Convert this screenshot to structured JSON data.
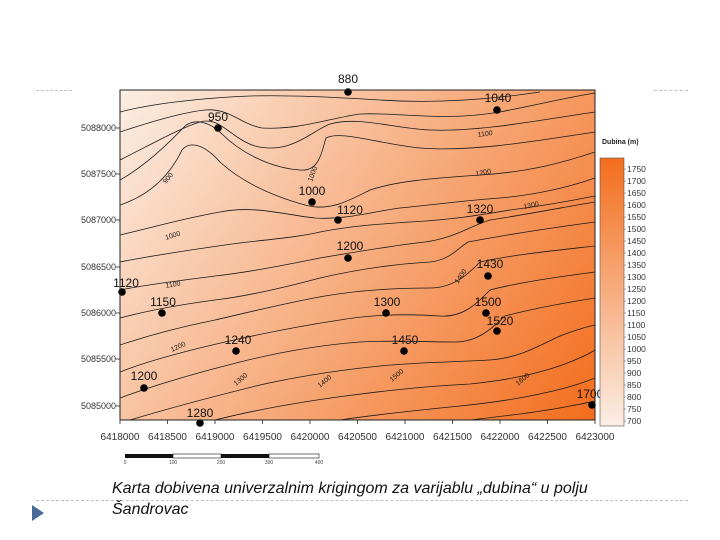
{
  "slide": {
    "caption_line1": "Karta dobivena univerzalnim krigingom za varijablu „dubina“ u polju",
    "caption_line2": "Šandrovac",
    "bullet_icon": "triangle-bullet-icon"
  },
  "map": {
    "colors": {
      "light": "#fbeee4",
      "dark": "#f36d1c",
      "contour": "#1a1a1a",
      "frame": "#222222"
    },
    "x_ticks": [
      "6418000",
      "6418500",
      "6419000",
      "6419500",
      "6420000",
      "6420500",
      "6421000",
      "6421500",
      "6422000",
      "6422500",
      "6423000"
    ],
    "y_ticks": [
      "5088000",
      "5087500",
      "5087000",
      "5086500",
      "5086000",
      "5085500",
      "5085000"
    ],
    "legend": {
      "title": "Dubina (m)",
      "values": [
        "1750",
        "1700",
        "1650",
        "1600",
        "1550",
        "1500",
        "1450",
        "1400",
        "1350",
        "1300",
        "1250",
        "1200",
        "1150",
        "1100",
        "1050",
        "1000",
        "950",
        "900",
        "850",
        "800",
        "750",
        "700"
      ]
    },
    "scale_bar": {
      "labels": [
        "0",
        "100",
        "200",
        "300",
        "400"
      ]
    },
    "wells": [
      {
        "label": "880"
      },
      {
        "label": "1040"
      },
      {
        "label": "950"
      },
      {
        "label": "1000"
      },
      {
        "label": "1120"
      },
      {
        "label": "1320"
      },
      {
        "label": "1200"
      },
      {
        "label": "1430"
      },
      {
        "label": "1120"
      },
      {
        "label": "1150"
      },
      {
        "label": "1300"
      },
      {
        "label": "1500"
      },
      {
        "label": "1520"
      },
      {
        "label": "1240"
      },
      {
        "label": "1450"
      },
      {
        "label": "1200"
      },
      {
        "label": "1700"
      },
      {
        "label": "1280"
      }
    ],
    "contour_labels": [
      "1100",
      "1000",
      "900",
      "1200",
      "1300",
      "1000",
      "1100",
      "1400",
      "1200",
      "1300",
      "1400",
      "1500",
      "1600"
    ]
  }
}
